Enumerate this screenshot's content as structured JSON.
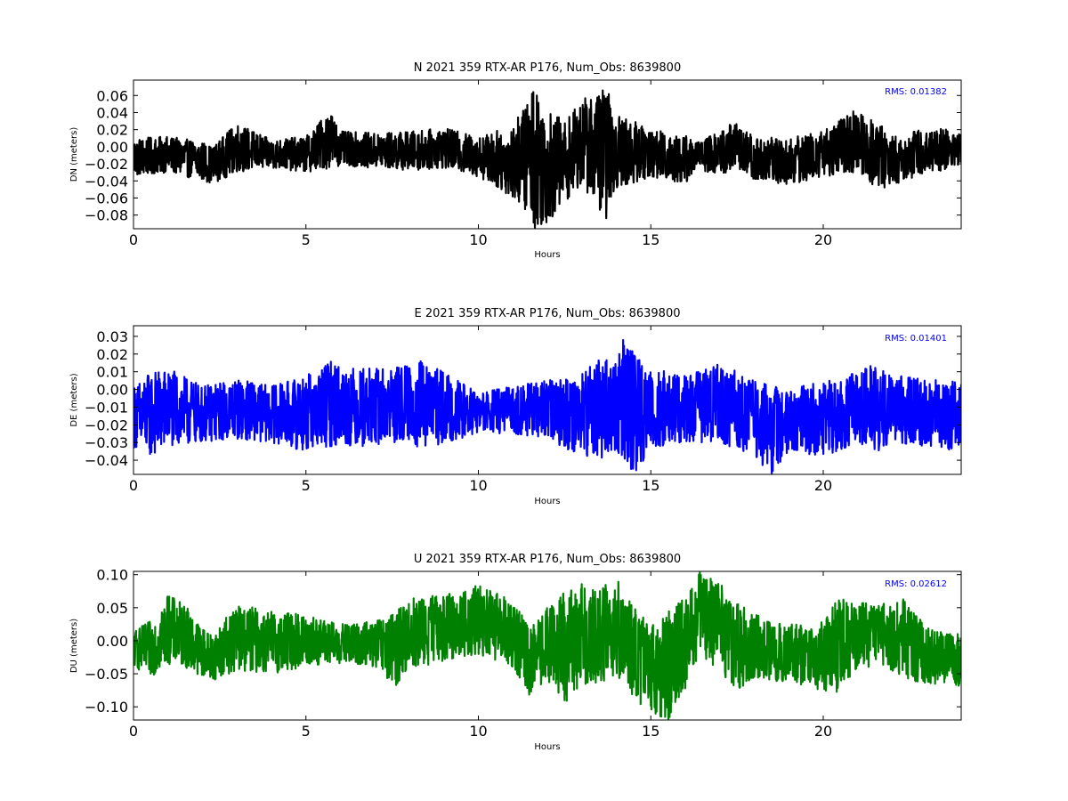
{
  "chart_data": [
    {
      "type": "line",
      "title": "N 2021 359 RTX-AR  P176, Num_Obs: 8639800",
      "xlabel": "Hours",
      "ylabel": "DN (meters)",
      "xlim": [
        0,
        24
      ],
      "ylim": [
        -0.096,
        0.078
      ],
      "xticks": [
        0,
        5,
        10,
        15,
        20
      ],
      "xtick_labels": [
        "0",
        "5",
        "10",
        "15",
        "20"
      ],
      "yticks": [
        -0.08,
        -0.06,
        -0.04,
        -0.02,
        0.0,
        0.02,
        0.04,
        0.06
      ],
      "ytick_labels": [
        "−0.08",
        "−0.06",
        "−0.04",
        "−0.02",
        "0.00",
        "0.02",
        "0.04",
        "0.06"
      ],
      "annotation": "RMS:  0.01382",
      "grid": false,
      "series": [
        {
          "color": "#000000",
          "x": [
            0,
            1,
            2,
            2.3,
            3,
            4,
            5,
            5.7,
            6,
            7,
            8,
            9,
            10,
            11,
            11.5,
            11.6,
            12,
            12.5,
            13,
            13.7,
            14,
            15,
            16,
            16.3,
            17,
            17.4,
            18,
            19,
            20,
            21,
            21.6,
            22,
            23,
            24
          ],
          "upper": [
            0.01,
            0.012,
            0.006,
            0.0,
            0.028,
            0.008,
            0.012,
            0.044,
            0.018,
            0.016,
            0.018,
            0.022,
            0.012,
            0.025,
            0.06,
            0.078,
            0.045,
            0.03,
            0.055,
            0.07,
            0.04,
            0.02,
            0.015,
            0.005,
            0.018,
            0.03,
            0.012,
            0.01,
            0.02,
            0.045,
            0.03,
            0.012,
            0.022,
            0.02
          ],
          "lower": [
            -0.035,
            -0.03,
            -0.04,
            -0.043,
            -0.03,
            -0.025,
            -0.03,
            -0.025,
            -0.022,
            -0.025,
            -0.028,
            -0.025,
            -0.035,
            -0.06,
            -0.08,
            -0.096,
            -0.09,
            -0.065,
            -0.045,
            -0.085,
            -0.05,
            -0.035,
            -0.045,
            -0.025,
            -0.035,
            -0.025,
            -0.04,
            -0.045,
            -0.035,
            -0.03,
            -0.05,
            -0.045,
            -0.03,
            -0.025
          ]
        }
      ]
    },
    {
      "type": "line",
      "title": "E 2021 359 RTX-AR  P176, Num_Obs: 8639800",
      "xlabel": "Hours",
      "ylabel": "DE (meters)",
      "xlim": [
        0,
        24
      ],
      "ylim": [
        -0.048,
        0.036
      ],
      "xticks": [
        0,
        5,
        10,
        15,
        20
      ],
      "xtick_labels": [
        "0",
        "5",
        "10",
        "15",
        "20"
      ],
      "yticks": [
        -0.04,
        -0.03,
        -0.02,
        -0.01,
        0.0,
        0.01,
        0.02,
        0.03
      ],
      "ytick_labels": [
        "−0.04",
        "−0.03",
        "−0.02",
        "−0.01",
        "0.00",
        "0.01",
        "0.02",
        "0.03"
      ],
      "annotation": "RMS:  0.01401",
      "grid": false,
      "series": [
        {
          "color": "#0000ff",
          "x": [
            0,
            0.5,
            1,
            2,
            3,
            4,
            5,
            5.8,
            6,
            7,
            8,
            8.3,
            9,
            10,
            11,
            12,
            13,
            13.5,
            14,
            14.3,
            14.5,
            15,
            16,
            17,
            18,
            18.5,
            19,
            20,
            21,
            21.6,
            22,
            23,
            24
          ],
          "upper": [
            0.002,
            0.01,
            0.012,
            0.002,
            0.006,
            0.002,
            0.008,
            0.017,
            0.013,
            0.012,
            0.014,
            0.017,
            0.01,
            -0.002,
            0.002,
            0.005,
            0.01,
            0.02,
            0.015,
            0.036,
            0.02,
            0.012,
            0.008,
            0.016,
            0.005,
            0.002,
            0.0,
            0.005,
            0.01,
            0.016,
            0.008,
            0.006,
            0.004
          ],
          "lower": [
            -0.033,
            -0.038,
            -0.033,
            -0.03,
            -0.028,
            -0.03,
            -0.035,
            -0.032,
            -0.032,
            -0.032,
            -0.03,
            -0.035,
            -0.03,
            -0.025,
            -0.025,
            -0.028,
            -0.038,
            -0.04,
            -0.035,
            -0.045,
            -0.048,
            -0.035,
            -0.03,
            -0.03,
            -0.038,
            -0.048,
            -0.035,
            -0.038,
            -0.03,
            -0.035,
            -0.03,
            -0.032,
            -0.035
          ]
        }
      ]
    },
    {
      "type": "line",
      "title": "U 2021 359 RTX-AR  P176, Num_Obs: 8639800",
      "xlabel": "Hours",
      "ylabel": "DU (meters)",
      "xlim": [
        0,
        24
      ],
      "ylim": [
        -0.12,
        0.105
      ],
      "xticks": [
        0,
        5,
        10,
        15,
        20
      ],
      "xtick_labels": [
        "0",
        "5",
        "10",
        "15",
        "20"
      ],
      "yticks": [
        -0.1,
        -0.05,
        0.0,
        0.05,
        0.1
      ],
      "ytick_labels": [
        "−0.10",
        "−0.05",
        "0.00",
        "0.05",
        "0.10"
      ],
      "annotation": "RMS:  0.02612",
      "grid": false,
      "series": [
        {
          "color": "#008000",
          "x": [
            0,
            0.5,
            1,
            1.5,
            2,
            2.3,
            3,
            4,
            5,
            6,
            7,
            7.5,
            8,
            9,
            10,
            11,
            11.5,
            12,
            12.5,
            13,
            13.5,
            14,
            14.5,
            15,
            15.5,
            16,
            16.4,
            17,
            17.5,
            18,
            19,
            20,
            20.4,
            21,
            22,
            22.3,
            23,
            24
          ],
          "upper": [
            0.015,
            0.03,
            0.07,
            0.055,
            0.02,
            0.01,
            0.055,
            0.045,
            0.04,
            0.025,
            0.03,
            0.04,
            0.065,
            0.07,
            0.085,
            0.06,
            0.02,
            0.05,
            0.075,
            0.09,
            0.08,
            0.095,
            0.05,
            0.03,
            0.045,
            0.065,
            0.105,
            0.09,
            0.065,
            0.04,
            0.025,
            0.03,
            0.065,
            0.06,
            0.055,
            0.065,
            0.02,
            0.01
          ],
          "lower": [
            -0.04,
            -0.055,
            -0.035,
            -0.04,
            -0.055,
            -0.06,
            -0.045,
            -0.05,
            -0.04,
            -0.035,
            -0.04,
            -0.075,
            -0.045,
            -0.03,
            -0.02,
            -0.04,
            -0.085,
            -0.06,
            -0.095,
            -0.065,
            -0.07,
            -0.05,
            -0.09,
            -0.11,
            -0.12,
            -0.075,
            -0.02,
            -0.045,
            -0.08,
            -0.055,
            -0.065,
            -0.075,
            -0.08,
            -0.04,
            -0.045,
            -0.06,
            -0.065,
            -0.07
          ]
        }
      ]
    }
  ]
}
